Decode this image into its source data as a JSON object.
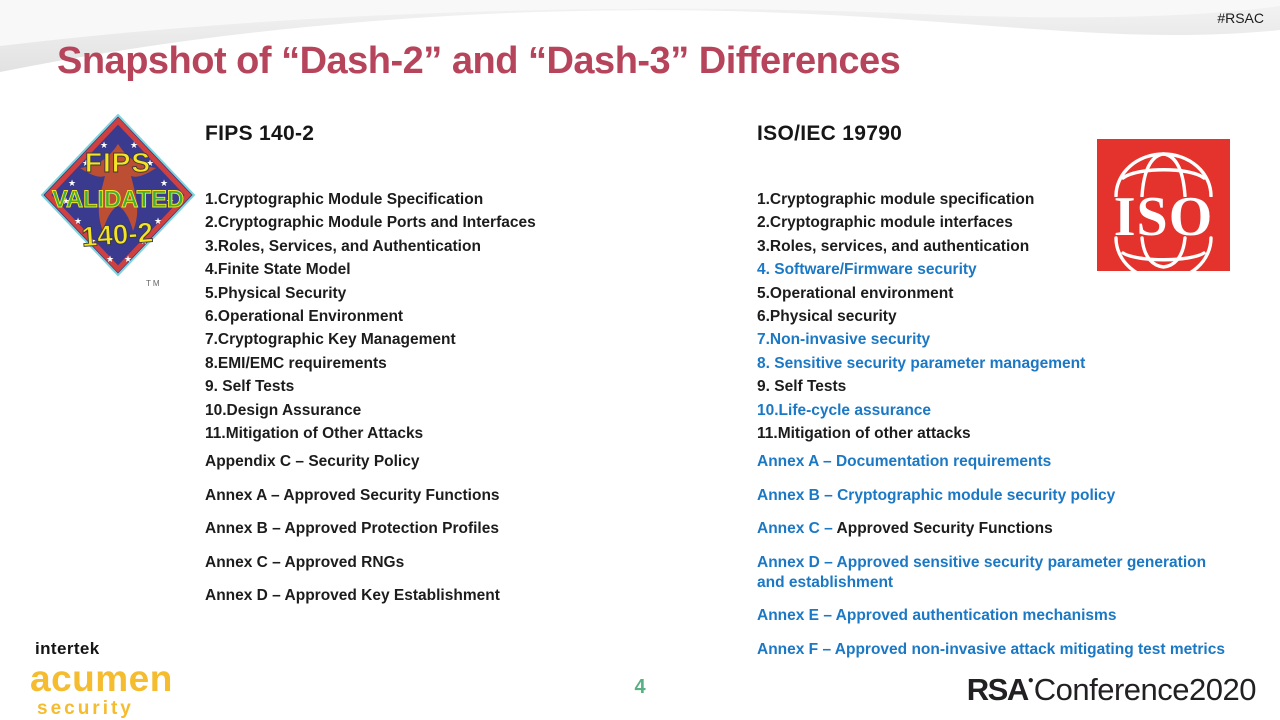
{
  "slide": {
    "hashtag": "#RSAC",
    "title": "Snapshot of “Dash-2” and “Dash-3” Differences",
    "page_number": "4"
  },
  "colors": {
    "title": "#b6455c",
    "blue": "#1b78c4",
    "ink": "#1c1c1c",
    "iso_red": "#e4332d",
    "acumen_yellow": "#f4bc2e",
    "page_green": "#57b183",
    "rsa_dark": "#232023"
  },
  "fips_logo": {
    "line1": "FIPS",
    "line2": "VALIDATED",
    "line3": "140-2",
    "tm": "TM"
  },
  "iso_logo": {
    "text": "ISO"
  },
  "left_column": {
    "header": "FIPS 140-2",
    "items": [
      {
        "text": "1.Cryptographic Module Specification",
        "blue": false
      },
      {
        "text": "2.Cryptographic Module Ports and Interfaces",
        "blue": false
      },
      {
        "text": "3.Roles, Services, and Authentication",
        "blue": false
      },
      {
        "text": "4.Finite State Model",
        "blue": false
      },
      {
        "text": "5.Physical Security",
        "blue": false
      },
      {
        "text": "6.Operational Environment",
        "blue": false
      },
      {
        "text": "7.Cryptographic Key Management",
        "blue": false
      },
      {
        "text": "8.EMI/EMC requirements",
        "blue": false
      },
      {
        "text": "9. Self Tests",
        "blue": false
      },
      {
        "text": "10.Design Assurance",
        "blue": false
      },
      {
        "text": "11.Mitigation of Other Attacks",
        "blue": false
      }
    ],
    "annexes": [
      {
        "parts": [
          {
            "text": "Appendix C – Security Policy",
            "blue": false
          }
        ]
      },
      {
        "parts": [
          {
            "text": "Annex A – Approved Security Functions",
            "blue": false
          }
        ]
      },
      {
        "parts": [
          {
            "text": "Annex B – Approved Protection Profiles",
            "blue": false
          }
        ]
      },
      {
        "parts": [
          {
            "text": "Annex C – Approved RNGs",
            "blue": false
          }
        ]
      },
      {
        "parts": [
          {
            "text": "Annex D – Approved Key Establishment",
            "blue": false
          }
        ]
      }
    ]
  },
  "right_column": {
    "header": "ISO/IEC 19790",
    "items": [
      {
        "text": "1.Cryptographic module specification",
        "blue": false
      },
      {
        "text": "2.Cryptographic module interfaces",
        "blue": false
      },
      {
        "text": "3.Roles, services, and authentication",
        "blue": false
      },
      {
        "text": "4. Software/Firmware security",
        "blue": true
      },
      {
        "text": "5.Operational environment",
        "blue": false
      },
      {
        "text": "6.Physical security",
        "blue": false
      },
      {
        "text": "7.Non-invasive security",
        "blue": true
      },
      {
        "text": "8. Sensitive security parameter management",
        "blue": true
      },
      {
        "text": "9. Self Tests",
        "blue": false
      },
      {
        "text": "10.Life-cycle assurance",
        "blue": true
      },
      {
        "text": "11.Mitigation of other attacks",
        "blue": false
      }
    ],
    "annexes": [
      {
        "parts": [
          {
            "text": "Annex A – Documentation requirements",
            "blue": true
          }
        ]
      },
      {
        "parts": [
          {
            "text": "Annex B – Cryptographic module security policy",
            "blue": true
          }
        ]
      },
      {
        "parts": [
          {
            "text": "Annex C – ",
            "blue": true
          },
          {
            "text": "Approved Security Functions",
            "blue": false
          }
        ]
      },
      {
        "parts": [
          {
            "text": "Annex D – Approved sensitive security parameter generation and establishment",
            "blue": true
          }
        ]
      },
      {
        "parts": [
          {
            "text": "Annex E – Approved authentication mechanisms",
            "blue": true
          }
        ]
      },
      {
        "parts": [
          {
            "text": "Annex F – Approved non-invasive attack mitigating test metrics",
            "blue": true
          }
        ]
      }
    ]
  },
  "footer": {
    "intertek": "intertek",
    "acumen": "acumen",
    "security": "security",
    "rsa": "RSA",
    "conference": "Conference2020"
  }
}
